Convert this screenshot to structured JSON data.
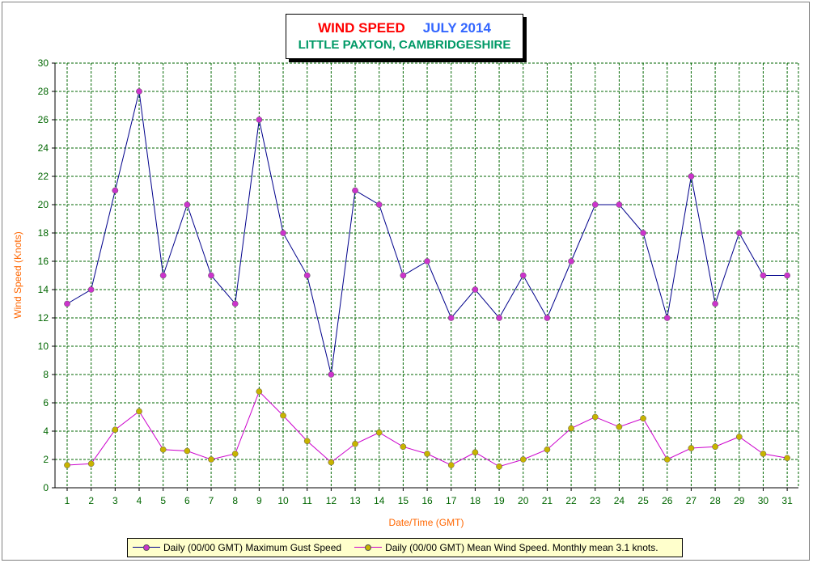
{
  "chart_data": {
    "type": "line",
    "title": "WIND SPEED",
    "title_period": "JULY 2014",
    "subtitle": "LITTLE PAXTON, CAMBRIDGESHIRE",
    "xlabel": "Date/Time (GMT)",
    "ylabel": "Wind Speed (Knots)",
    "ylim": [
      0,
      30
    ],
    "y_ticks": [
      0,
      2,
      4,
      6,
      8,
      10,
      12,
      14,
      16,
      18,
      20,
      22,
      24,
      26,
      28,
      30
    ],
    "categories": [
      "1",
      "2",
      "3",
      "4",
      "5",
      "6",
      "7",
      "8",
      "9",
      "10",
      "11",
      "12",
      "13",
      "14",
      "15",
      "16",
      "17",
      "18",
      "19",
      "20",
      "21",
      "22",
      "23",
      "24",
      "25",
      "26",
      "27",
      "28",
      "29",
      "30",
      "31"
    ],
    "grid": true,
    "legend_position": "bottom",
    "series": [
      {
        "name": "Daily (00/00 GMT) Maximum Gust Speed",
        "line_color": "#00008b",
        "marker_color": "#cc33cc",
        "values": [
          13,
          14,
          21,
          28,
          15,
          20,
          15,
          13,
          26,
          18,
          15,
          8,
          21,
          20,
          15,
          16,
          12,
          14,
          12,
          15,
          12,
          16,
          20,
          20,
          18,
          12,
          22,
          13,
          18,
          15,
          15
        ]
      },
      {
        "name": "Daily (00/00 GMT) Mean Wind Speed. Monthly mean 3.1 knots.",
        "line_color": "#cc00cc",
        "marker_color": "#c8b400",
        "values": [
          1.6,
          1.7,
          4.1,
          5.4,
          2.7,
          2.6,
          2.0,
          2.4,
          6.8,
          5.1,
          3.3,
          1.8,
          3.1,
          3.9,
          2.9,
          2.4,
          1.6,
          2.5,
          1.5,
          2.0,
          2.7,
          4.2,
          5.0,
          4.3,
          4.9,
          2.0,
          2.8,
          2.9,
          3.6,
          2.4,
          2.1
        ]
      }
    ]
  },
  "colors": {
    "title": "#ff0000",
    "title_period": "#3366ff",
    "subtitle": "#009966",
    "tick_labels": "#006600",
    "axis_titles": "#ff6600",
    "grid": "#006600",
    "legend_bg": "#ffffcc"
  }
}
